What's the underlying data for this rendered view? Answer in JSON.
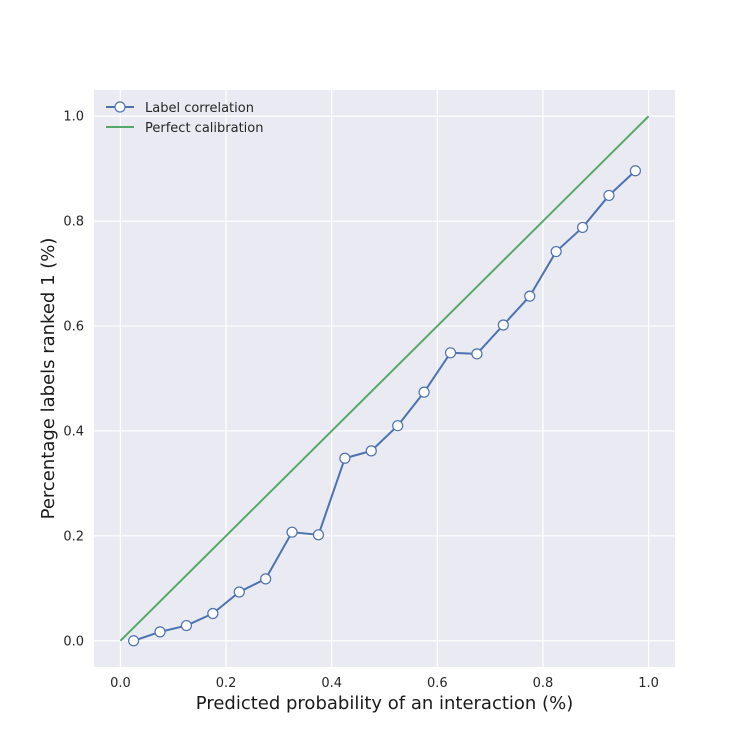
{
  "chart_data": {
    "type": "line",
    "xlabel": "Predicted probability of an interaction (%)",
    "ylabel": "Percentage labels ranked 1 (%)",
    "xlim": [
      -0.05,
      1.05
    ],
    "ylim": [
      -0.05,
      1.05
    ],
    "xticks": [
      "0.0",
      "0.2",
      "0.4",
      "0.6",
      "0.8",
      "1.0"
    ],
    "yticks": [
      "0.0",
      "0.2",
      "0.4",
      "0.6",
      "0.8",
      "1.0"
    ],
    "grid": true,
    "legend_position": "top-left",
    "series": [
      {
        "name": "Label correlation",
        "color": "#4c72b0",
        "marker": "circle",
        "x": [
          0.025,
          0.075,
          0.125,
          0.175,
          0.225,
          0.275,
          0.325,
          0.375,
          0.425,
          0.475,
          0.525,
          0.575,
          0.625,
          0.675,
          0.725,
          0.775,
          0.825,
          0.875,
          0.925,
          0.975
        ],
        "y": [
          0.0,
          0.017,
          0.029,
          0.052,
          0.093,
          0.118,
          0.207,
          0.202,
          0.348,
          0.362,
          0.41,
          0.474,
          0.549,
          0.547,
          0.602,
          0.657,
          0.742,
          0.788,
          0.849,
          0.896
        ]
      },
      {
        "name": "Perfect calibration",
        "color": "#55a868",
        "marker": "none",
        "x": [
          0.0,
          1.0
        ],
        "y": [
          0.0,
          1.0
        ]
      }
    ]
  }
}
